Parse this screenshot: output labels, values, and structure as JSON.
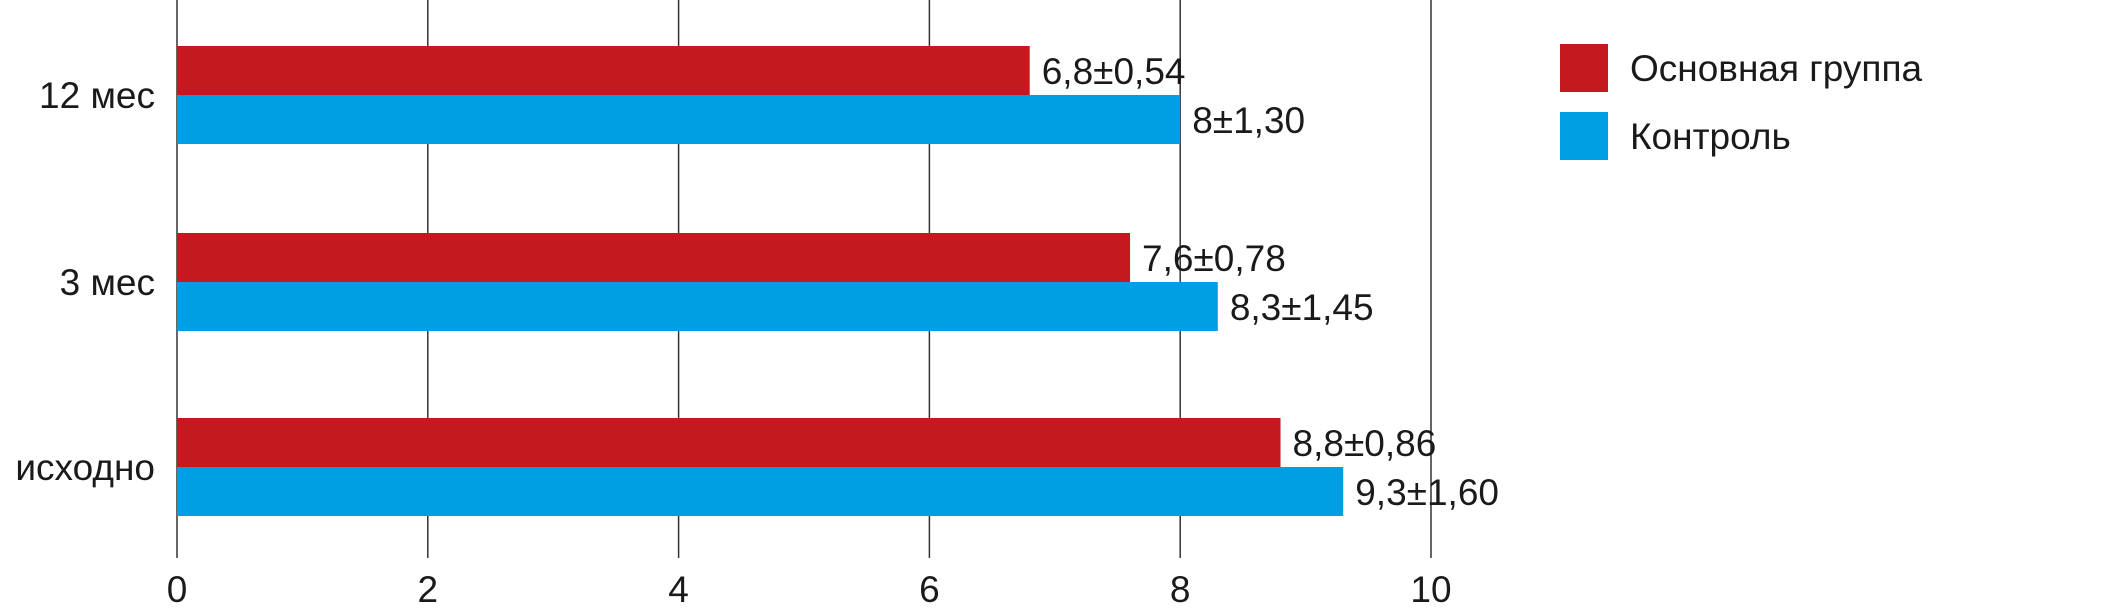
{
  "chart_data": {
    "type": "bar",
    "orientation": "horizontal",
    "categories": [
      "12 мес",
      "3 мес",
      "исходно"
    ],
    "series": [
      {
        "name": "Основная группа",
        "color": "#c3191f",
        "values": [
          6.8,
          7.6,
          8.8
        ],
        "labels": [
          "6,8±0,54",
          "7,6±0,78",
          "8,8±0,86"
        ]
      },
      {
        "name": "Контроль",
        "color": "#009fe3",
        "values": [
          8,
          8.3,
          9.3
        ],
        "labels": [
          "8±1,30",
          "8,3±1,45",
          "9,3±1,60"
        ]
      }
    ],
    "xlim": [
      0,
      10
    ],
    "xticks": [
      0,
      2,
      4,
      6,
      8,
      10
    ],
    "xtick_labels": [
      "0",
      "2",
      "4",
      "6",
      "8",
      "10"
    ],
    "grid": true,
    "legend_position": "top-right",
    "title": "",
    "xlabel": "",
    "ylabel": ""
  }
}
